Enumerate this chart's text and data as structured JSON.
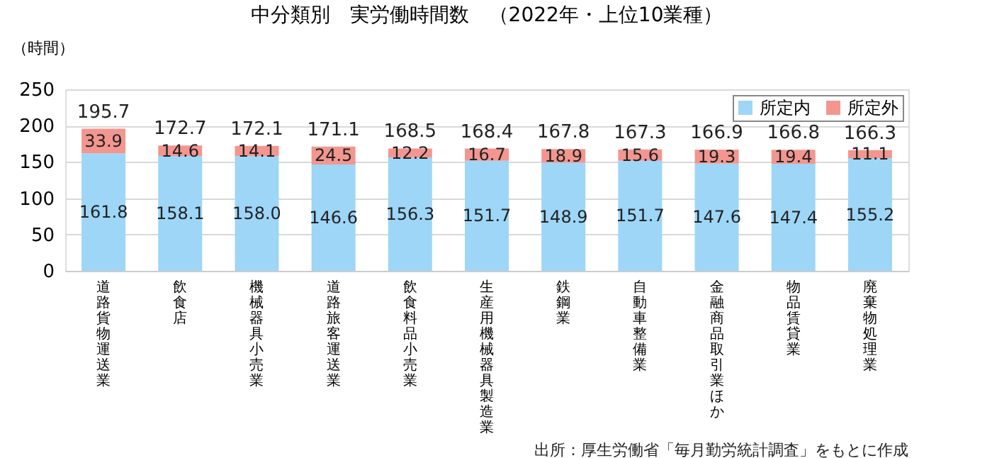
{
  "chart_data": {
    "type": "bar",
    "stacked": true,
    "title": "中分類別　実労働時間数　（2022年・上位10業種）",
    "ylabel": "（時間）",
    "categories": [
      "道路貨物運送業",
      "飲食店",
      "機械器具小売業",
      "道路旅客運送業",
      "飲食料品小売業",
      "生産用機械器具製造業",
      "鉄鋼業",
      "自動車整備業",
      "金融商品取引業ほか",
      "物品賃貸業",
      "廃棄物処理業"
    ],
    "series": [
      {
        "name": "所定内",
        "color": "#9dd6f7",
        "values": [
          161.8,
          158.1,
          158.0,
          146.6,
          156.3,
          151.7,
          148.9,
          151.7,
          147.6,
          147.4,
          155.2
        ],
        "value_labels": [
          "161.8",
          "158.1",
          "158.0",
          "146.6",
          "156.3",
          "151.7",
          "148.9",
          "151.7",
          "147.6",
          "147.4",
          "155.2"
        ]
      },
      {
        "name": "所定外",
        "color": "#f2968f",
        "values": [
          33.9,
          14.6,
          14.1,
          24.5,
          12.2,
          16.7,
          18.9,
          15.6,
          19.3,
          19.4,
          11.1
        ],
        "value_labels": [
          "33.9",
          "14.6",
          "14.1",
          "24.5",
          "12.2",
          "16.7",
          "18.9",
          "15.6",
          "19.3",
          "19.4",
          "11.1"
        ]
      }
    ],
    "totals": [
      "195.7",
      "172.7",
      "172.1",
      "171.1",
      "168.5",
      "168.4",
      "167.8",
      "167.3",
      "166.9",
      "166.8",
      "166.3"
    ],
    "ylim": [
      0,
      250
    ],
    "yticks": [
      0,
      50,
      100,
      150,
      200,
      250
    ],
    "grid": "y",
    "legend": "top right",
    "annotations": [
      "出所：厚生労働省「毎月勤労統計調査」をもとに作成"
    ]
  }
}
